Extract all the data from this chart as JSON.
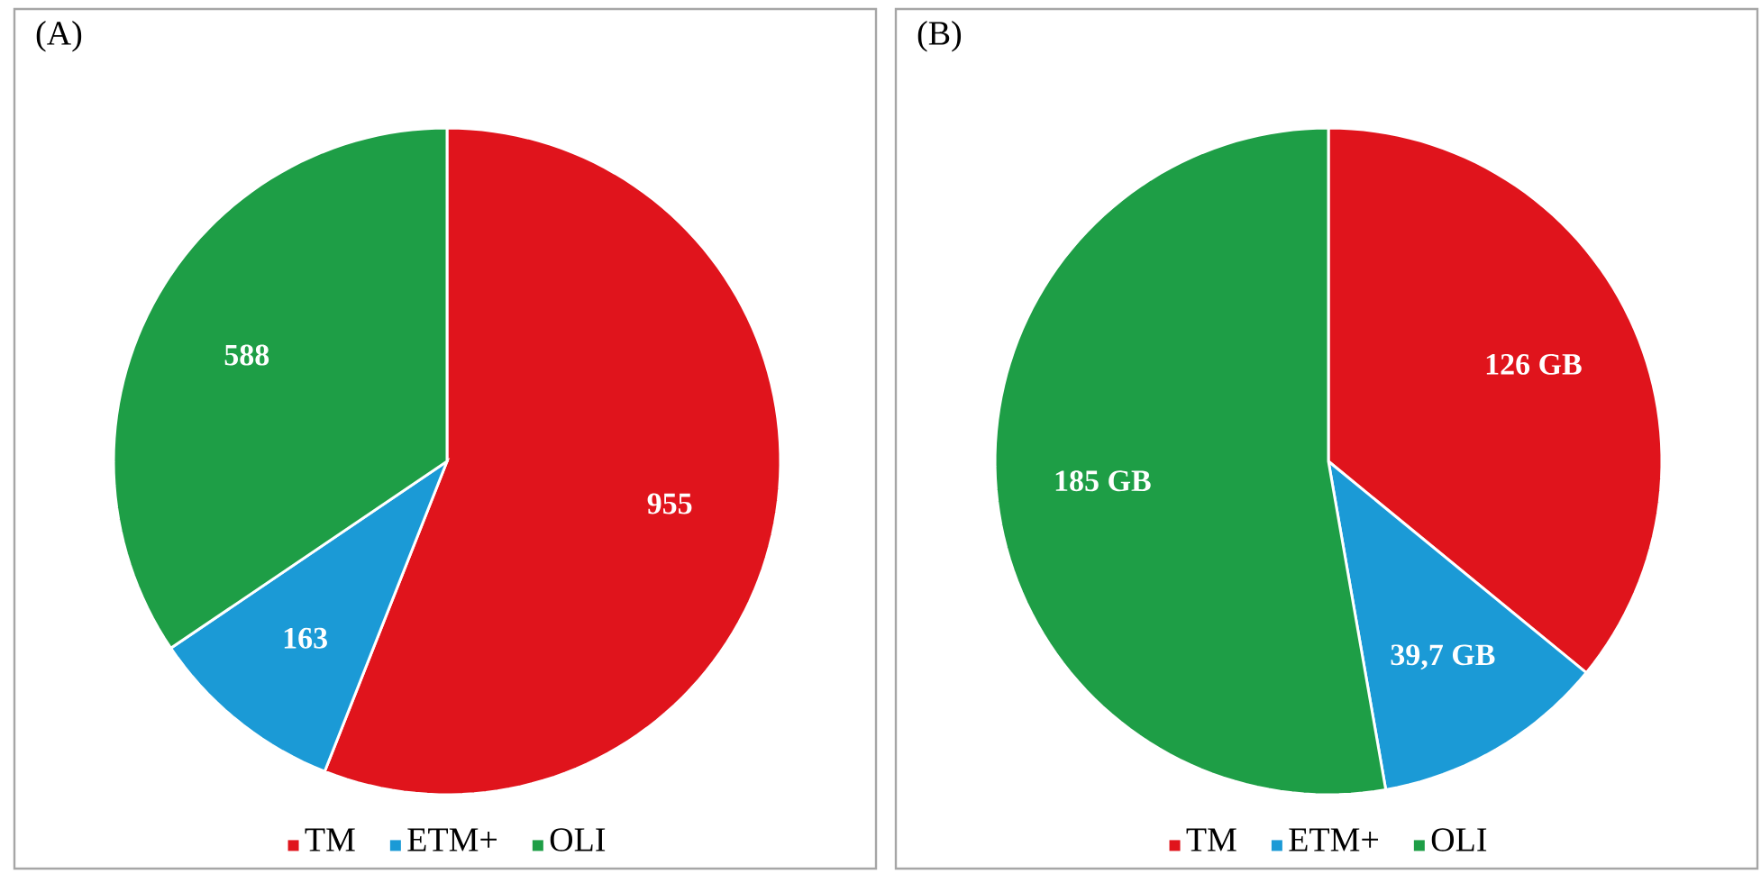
{
  "chart_data": [
    {
      "type": "pie",
      "title": "(A)",
      "categories": [
        "TM",
        "ETM+",
        "OLI"
      ],
      "values": [
        955,
        163,
        588
      ],
      "colors": [
        "#e0141c",
        "#1b9ad6",
        "#1e9e46"
      ],
      "data_labels": true,
      "legend": "bottom"
    },
    {
      "type": "pie",
      "title": "(B)",
      "categories": [
        "TM",
        "ETM+",
        "OLI"
      ],
      "values": [
        126,
        39.7,
        185
      ],
      "value_labels": [
        "126 GB",
        "39,7 GB",
        "185 GB"
      ],
      "colors": [
        "#e0141c",
        "#1b9ad6",
        "#1e9e46"
      ],
      "legend": "bottom"
    }
  ]
}
